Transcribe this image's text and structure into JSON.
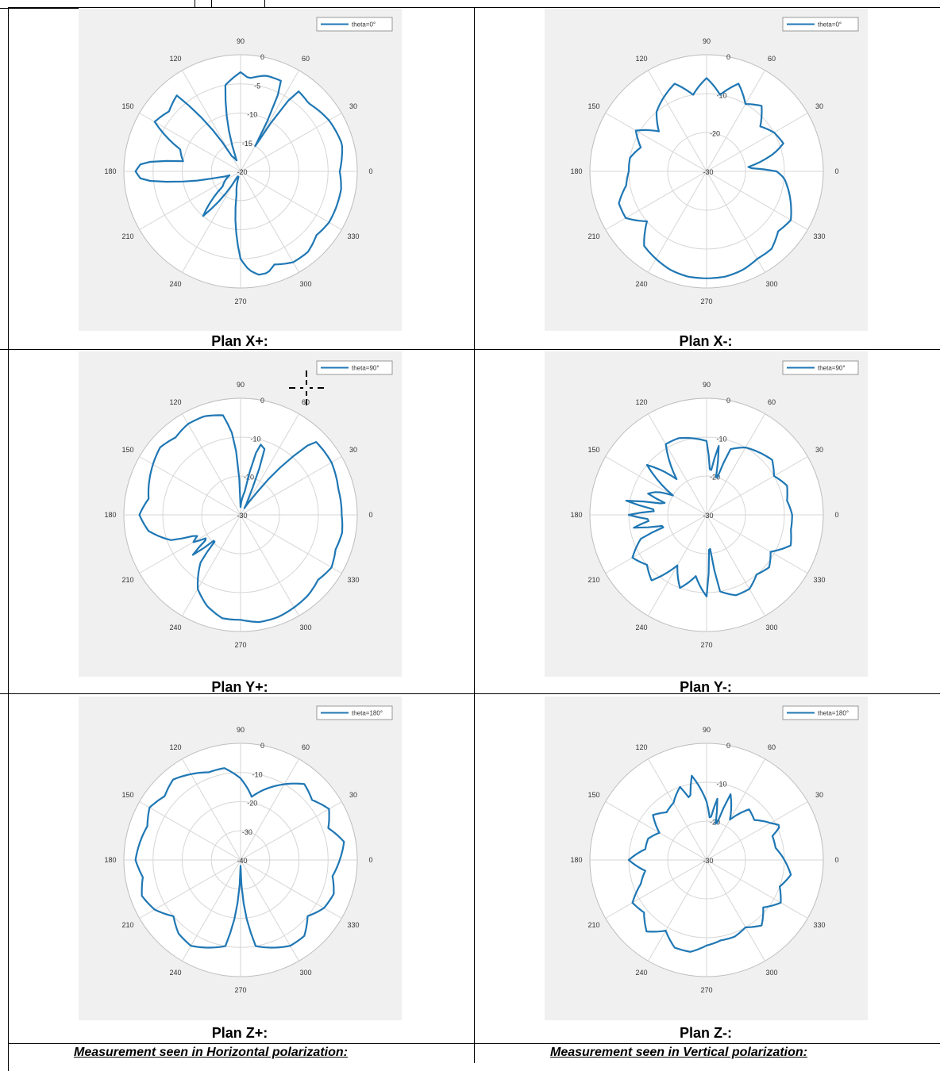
{
  "colors": {
    "trace": "#1f77b4",
    "axes_bg": "#f0f0f0",
    "grid": "#d6d6d6"
  },
  "footer": {
    "left": "Measurement seen in Horizontal polarization:",
    "right": "Measurement seen in Vertical polarization:"
  },
  "chart_data": [
    {
      "type": "polar",
      "title": "Plan X+:",
      "legend": "theta=0°",
      "legend_position": "top-right",
      "angle_ticks": [
        "0",
        "30",
        "60",
        "90",
        "120",
        "150",
        "180",
        "210",
        "240",
        "270",
        "300",
        "330"
      ],
      "radial_ticks": [
        "0",
        "-5",
        "-10",
        "-15",
        "-20"
      ],
      "rlim": [
        -20,
        0
      ],
      "series": [
        {
          "theta": [
            0,
            15,
            30,
            45,
            55,
            60,
            65,
            75,
            85,
            90,
            100,
            110,
            120,
            130,
            140,
            150,
            160,
            170,
            175,
            180,
            185,
            190,
            195,
            200,
            210,
            220,
            230,
            240,
            250,
            260,
            270,
            275,
            280,
            285,
            290,
            300,
            310,
            320,
            330,
            340,
            350
          ],
          "r": [
            -3,
            -2,
            -2.5,
            -3.5,
            -3,
            -15,
            -3,
            -3,
            -4,
            -3,
            -5,
            -18,
            -17,
            -3,
            -4,
            -3,
            -9,
            -10,
            -3,
            -2,
            -3,
            -10,
            -16,
            -18,
            -17,
            -16,
            -10,
            -19,
            -19,
            -16,
            -5,
            -3,
            -2,
            -2,
            -3,
            -2,
            -2,
            -3,
            -2.5,
            -2.5,
            -2.5
          ]
        }
      ]
    },
    {
      "type": "polar",
      "title": "Plan X-:",
      "legend": "theta=0°",
      "legend_position": "top-right",
      "angle_ticks": [
        "0",
        "30",
        "60",
        "90",
        "120",
        "150",
        "180",
        "210",
        "240",
        "270",
        "300",
        "330"
      ],
      "radial_ticks": [
        "0",
        "-10",
        "-20",
        "-30"
      ],
      "rlim": [
        -30,
        0
      ],
      "series": [
        {
          "theta": [
            0,
            5,
            10,
            15,
            20,
            30,
            40,
            50,
            60,
            70,
            80,
            90,
            100,
            110,
            120,
            130,
            140,
            150,
            160,
            170,
            180,
            190,
            200,
            210,
            220,
            230,
            240,
            250,
            260,
            270,
            280,
            290,
            300,
            310,
            320,
            330,
            340,
            350,
            355
          ],
          "r": [
            -12,
            -20,
            -16,
            -12,
            -9,
            -10,
            -12,
            -8,
            -10,
            -6,
            -10,
            -6,
            -10,
            -6,
            -8,
            -10,
            -14,
            -9,
            -12,
            -10,
            -10,
            -9,
            -6,
            -6,
            -10,
            -5,
            -4,
            -3,
            -2.5,
            -2.5,
            -2.5,
            -3,
            -4,
            -4,
            -6,
            -5,
            -7,
            -9,
            -10
          ]
        }
      ]
    },
    {
      "type": "polar",
      "title": "Plan Y+:",
      "legend": "theta=90°",
      "legend_position": "top-right",
      "angle_ticks": [
        "0",
        "30",
        "60",
        "90",
        "120",
        "150",
        "180",
        "210",
        "240",
        "270",
        "300",
        "330"
      ],
      "radial_ticks": [
        "0",
        "-10",
        "-20",
        "-30"
      ],
      "rlim": [
        -30,
        0
      ],
      "series": [
        {
          "theta": [
            0,
            15,
            30,
            45,
            55,
            60,
            65,
            70,
            75,
            80,
            90,
            95,
            100,
            110,
            120,
            130,
            140,
            150,
            160,
            170,
            180,
            190,
            200,
            205,
            210,
            215,
            220,
            225,
            230,
            240,
            250,
            260,
            270,
            280,
            290,
            300,
            310,
            320,
            330,
            340,
            350
          ],
          "r": [
            -4,
            -4,
            -3,
            -3,
            -25,
            -28,
            -25,
            -12,
            -11,
            -24,
            -28,
            -10,
            -4,
            -3,
            -3,
            -4,
            -3,
            -4,
            -5,
            -6,
            -4,
            -6,
            -11,
            -18,
            -16,
            -20,
            -14,
            -22,
            -14,
            -8,
            -5,
            -3,
            -3,
            -2,
            -2,
            -2.5,
            -3,
            -4,
            -3,
            -4,
            -3.5
          ]
        }
      ]
    },
    {
      "type": "polar",
      "title": "Plan Y-:",
      "legend": "theta=90°",
      "legend_position": "top-right",
      "angle_ticks": [
        "0",
        "30",
        "60",
        "90",
        "120",
        "150",
        "180",
        "210",
        "240",
        "270",
        "300",
        "330"
      ],
      "radial_ticks": [
        "0",
        "-10",
        "-20",
        "-30"
      ],
      "rlim": [
        -30,
        0
      ],
      "series": [
        {
          "theta": [
            0,
            10,
            20,
            30,
            40,
            50,
            60,
            70,
            75,
            80,
            85,
            90,
            100,
            110,
            120,
            130,
            140,
            150,
            155,
            160,
            165,
            170,
            175,
            180,
            185,
            190,
            195,
            200,
            210,
            220,
            230,
            240,
            250,
            260,
            270,
            275,
            280,
            290,
            300,
            310,
            320,
            330,
            340,
            350
          ],
          "r": [
            -8,
            -9,
            -8,
            -10,
            -8,
            -9,
            -10,
            -12,
            -22,
            -12,
            -20,
            -11,
            -10,
            -9,
            -9,
            -18,
            -10,
            -20,
            -16,
            -14,
            -20,
            -9,
            -18,
            -10,
            -16,
            -11,
            -20,
            -12,
            -8,
            -10,
            -8,
            -15,
            -10,
            -14,
            -9,
            -24,
            -10,
            -8,
            -8,
            -10,
            -9,
            -11,
            -7,
            -8
          ]
        }
      ]
    },
    {
      "type": "polar",
      "title": "Plan Z+:",
      "legend": "theta=180°",
      "legend_position": "top-right",
      "angle_ticks": [
        "0",
        "30",
        "60",
        "90",
        "120",
        "150",
        "180",
        "210",
        "240",
        "270",
        "300",
        "330"
      ],
      "radial_ticks": [
        "0",
        "-10",
        "-20",
        "-30",
        "-40"
      ],
      "rlim": [
        -40,
        0
      ],
      "series": [
        {
          "theta": [
            0,
            10,
            20,
            30,
            40,
            50,
            60,
            70,
            80,
            90,
            100,
            110,
            120,
            130,
            140,
            150,
            160,
            170,
            180,
            190,
            200,
            210,
            220,
            230,
            240,
            250,
            260,
            265,
            270,
            275,
            280,
            290,
            300,
            310,
            320,
            330,
            340,
            350
          ],
          "r": [
            -6,
            -4,
            -8,
            -5,
            -8,
            -6,
            -10,
            -14,
            -18,
            -12,
            -8,
            -8,
            -6,
            -4,
            -6,
            -4,
            -6,
            -5,
            -4,
            -6,
            -4,
            -6,
            -10,
            -7,
            -6,
            -8,
            -10,
            -22,
            -38,
            -22,
            -10,
            -8,
            -6,
            -6,
            -10,
            -7,
            -6,
            -8
          ]
        }
      ]
    },
    {
      "type": "polar",
      "title": "Plan Z-:",
      "legend": "theta=180°",
      "legend_position": "top-right",
      "angle_ticks": [
        "0",
        "30",
        "60",
        "90",
        "120",
        "150",
        "180",
        "210",
        "240",
        "270",
        "300",
        "330"
      ],
      "radial_ticks": [
        "0",
        "-10",
        "-20",
        "-30"
      ],
      "rlim": [
        -30,
        0
      ],
      "series": [
        {
          "theta": [
            0,
            10,
            20,
            25,
            30,
            40,
            50,
            60,
            70,
            75,
            80,
            85,
            90,
            100,
            105,
            110,
            120,
            130,
            140,
            150,
            160,
            170,
            180,
            190,
            200,
            210,
            220,
            230,
            240,
            250,
            260,
            270,
            280,
            290,
            300,
            310,
            320,
            330,
            340,
            350
          ],
          "r": [
            -10,
            -12,
            -12,
            -9,
            -11,
            -14,
            -13,
            -18,
            -12,
            -22,
            -14,
            -20,
            -15,
            -8,
            -14,
            -10,
            -13,
            -14,
            -12,
            -16,
            -14,
            -14,
            -10,
            -14,
            -12,
            -8,
            -9,
            -6,
            -9,
            -6,
            -6,
            -8,
            -9,
            -9,
            -10,
            -8,
            -11,
            -8,
            -10,
            -8
          ]
        }
      ]
    }
  ]
}
